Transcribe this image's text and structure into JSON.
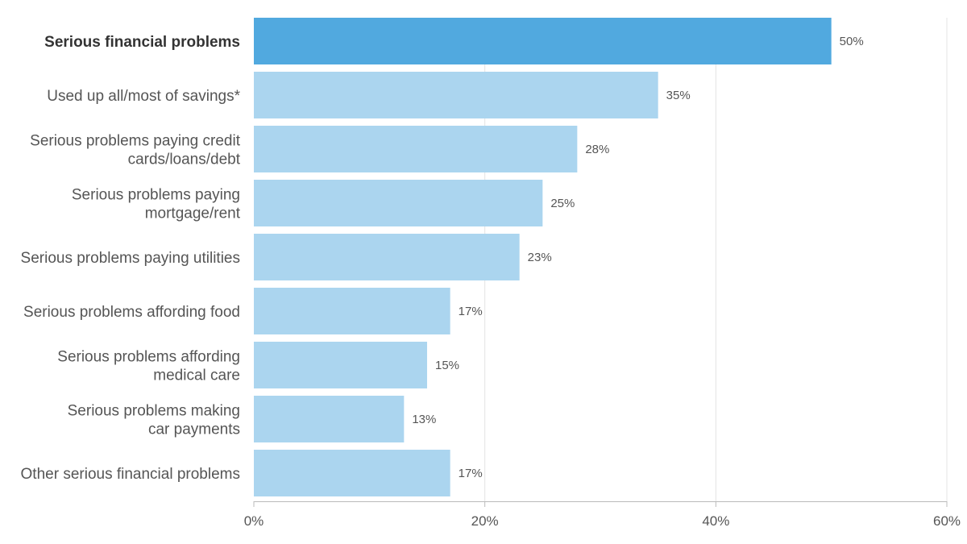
{
  "chart_data": {
    "type": "bar",
    "orientation": "horizontal",
    "categories": [
      [
        "Serious financial problems"
      ],
      [
        "Used up all/most of savings*"
      ],
      [
        "Serious problems paying credit",
        "cards/loans/debt"
      ],
      [
        "Serious problems paying",
        "mortgage/rent"
      ],
      [
        "Serious problems paying utilities"
      ],
      [
        "Serious problems affording food"
      ],
      [
        "Serious problems affording",
        "medical care"
      ],
      [
        "Serious problems making",
        "car payments"
      ],
      [
        "Other serious financial problems"
      ]
    ],
    "values": [
      50,
      35,
      28,
      25,
      23,
      17,
      15,
      13,
      17
    ],
    "value_labels": [
      "50%",
      "35%",
      "28%",
      "25%",
      "23%",
      "17%",
      "15%",
      "13%",
      "17%"
    ],
    "highlight_index": 0,
    "xlim": [
      0,
      60
    ],
    "xticks": [
      0,
      20,
      40,
      60
    ],
    "xtick_labels": [
      "0%",
      "20%",
      "40%",
      "60%"
    ],
    "grid": true,
    "colors": {
      "highlight": "#51a9df",
      "bar": "#abd5ef",
      "grid": "#e4e4e4",
      "axis": "#bbbbbb"
    }
  }
}
